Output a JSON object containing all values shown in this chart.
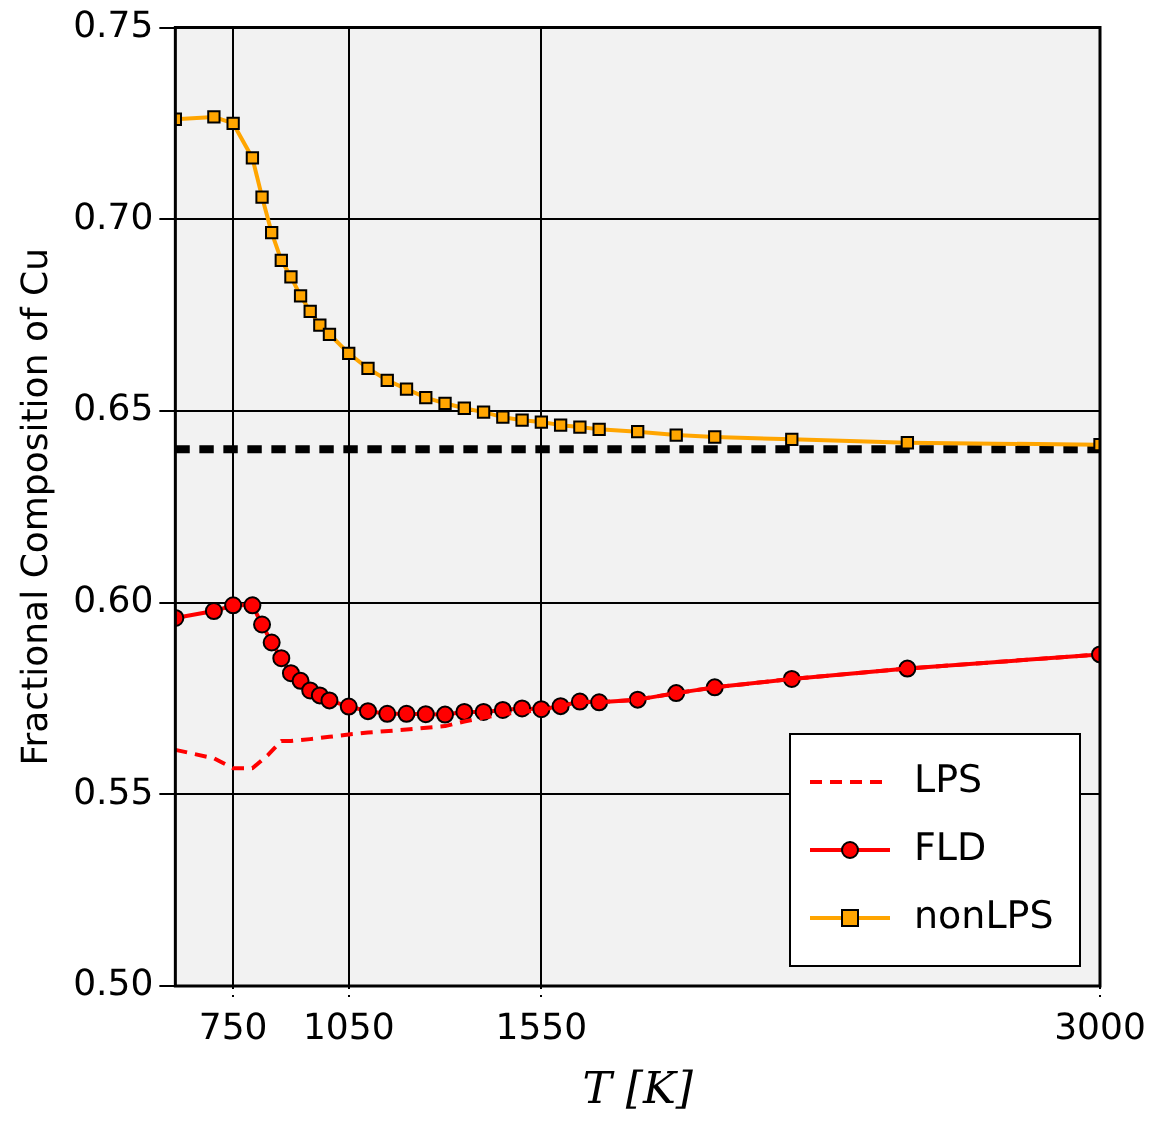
{
  "chart_data": {
    "type": "line",
    "xlabel": "T [K]",
    "ylabel": "Fractional Composition of Cu",
    "xlim": [
      600,
      3000
    ],
    "xticks": [
      750,
      1050,
      1550,
      3000
    ],
    "ylim": [
      0.5,
      0.75
    ],
    "yticks": [
      {
        "value": 0.5,
        "label": "0.50"
      },
      {
        "value": 0.55,
        "label": "0.55"
      },
      {
        "value": 0.6,
        "label": "0.60"
      },
      {
        "value": 0.65,
        "label": "0.65"
      },
      {
        "value": 0.7,
        "label": "0.70"
      },
      {
        "value": 0.75,
        "label": "0.75"
      }
    ],
    "grid": true,
    "legend": "bottom right",
    "ref_lines": [
      {
        "axis": "y",
        "value": 0.64,
        "color": "#000000",
        "line_style": "dashed"
      }
    ],
    "series": [
      {
        "name": "LPS",
        "color": "#ff0000",
        "marker": "none",
        "line_style": "dashed",
        "x": [
          600,
          700,
          750,
          800,
          840,
          875,
          900,
          950,
          1000,
          1050,
          1100,
          1200,
          1300,
          1350,
          1400,
          1450,
          1500,
          1550,
          1600,
          1650,
          1700,
          1800,
          1900,
          2000,
          2200,
          2500,
          3000
        ],
        "values": [
          0.5616,
          0.5594,
          0.5568,
          0.5568,
          0.5602,
          0.5639,
          0.5639,
          0.5644,
          0.565,
          0.5656,
          0.5661,
          0.5669,
          0.5678,
          0.569,
          0.57,
          0.5709,
          0.5715,
          0.572,
          0.573,
          0.5742,
          0.574,
          0.5747,
          0.5764,
          0.5779,
          0.5801,
          0.5828,
          0.5865
        ]
      },
      {
        "name": "FLD",
        "color": "#ff0000",
        "marker": "circle",
        "line_style": "solid",
        "x": [
          600,
          700,
          750,
          800,
          825,
          850,
          875,
          900,
          925,
          950,
          975,
          1000,
          1050,
          1100,
          1150,
          1200,
          1250,
          1300,
          1350,
          1400,
          1450,
          1500,
          1550,
          1600,
          1650,
          1700,
          1800,
          1900,
          2000,
          2200,
          2500,
          3000
        ],
        "values": [
          0.596,
          0.5978,
          0.5993,
          0.5993,
          0.5943,
          0.5896,
          0.5855,
          0.5816,
          0.5796,
          0.5771,
          0.5758,
          0.5745,
          0.5729,
          0.5717,
          0.571,
          0.571,
          0.5709,
          0.5708,
          0.5715,
          0.5715,
          0.572,
          0.5724,
          0.5722,
          0.573,
          0.5742,
          0.574,
          0.5747,
          0.5764,
          0.5779,
          0.5801,
          0.5828,
          0.5865
        ]
      },
      {
        "name": "nonLPS",
        "color": "#ffa500",
        "marker": "square",
        "line_style": "solid",
        "x": [
          600,
          700,
          750,
          800,
          825,
          850,
          875,
          900,
          925,
          950,
          975,
          1000,
          1050,
          1100,
          1150,
          1200,
          1250,
          1300,
          1350,
          1400,
          1450,
          1500,
          1550,
          1600,
          1650,
          1700,
          1800,
          1900,
          2000,
          2200,
          2500,
          3000
        ],
        "values": [
          0.7261,
          0.7267,
          0.725,
          0.716,
          0.7058,
          0.6965,
          0.6893,
          0.685,
          0.68,
          0.676,
          0.6724,
          0.67,
          0.665,
          0.6611,
          0.658,
          0.6557,
          0.6535,
          0.652,
          0.6507,
          0.6497,
          0.6484,
          0.6476,
          0.6471,
          0.6463,
          0.6458,
          0.6452,
          0.6446,
          0.6437,
          0.6432,
          0.6426,
          0.6417,
          0.6412
        ]
      }
    ]
  }
}
